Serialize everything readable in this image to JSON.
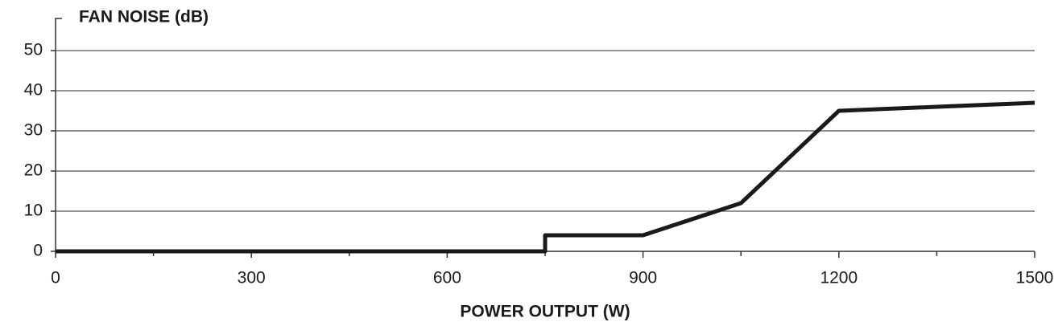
{
  "chart_data": {
    "type": "line",
    "y_label": "FAN NOISE (dB)",
    "x_label": "POWER OUTPUT (W)",
    "x": [
      0,
      750,
      750,
      900,
      1050,
      1200,
      1350,
      1500
    ],
    "series": [
      {
        "color": "#1a1a1a",
        "values": [
          0,
          0,
          4,
          4,
          12,
          35,
          36,
          37
        ]
      }
    ],
    "xlim": [
      0,
      1500
    ],
    "xticks": [
      0,
      300,
      600,
      900,
      1200,
      1500
    ],
    "ylim": [
      0,
      58
    ],
    "yticks": [
      0,
      10,
      20,
      30,
      40,
      50
    ],
    "grid": true
  }
}
